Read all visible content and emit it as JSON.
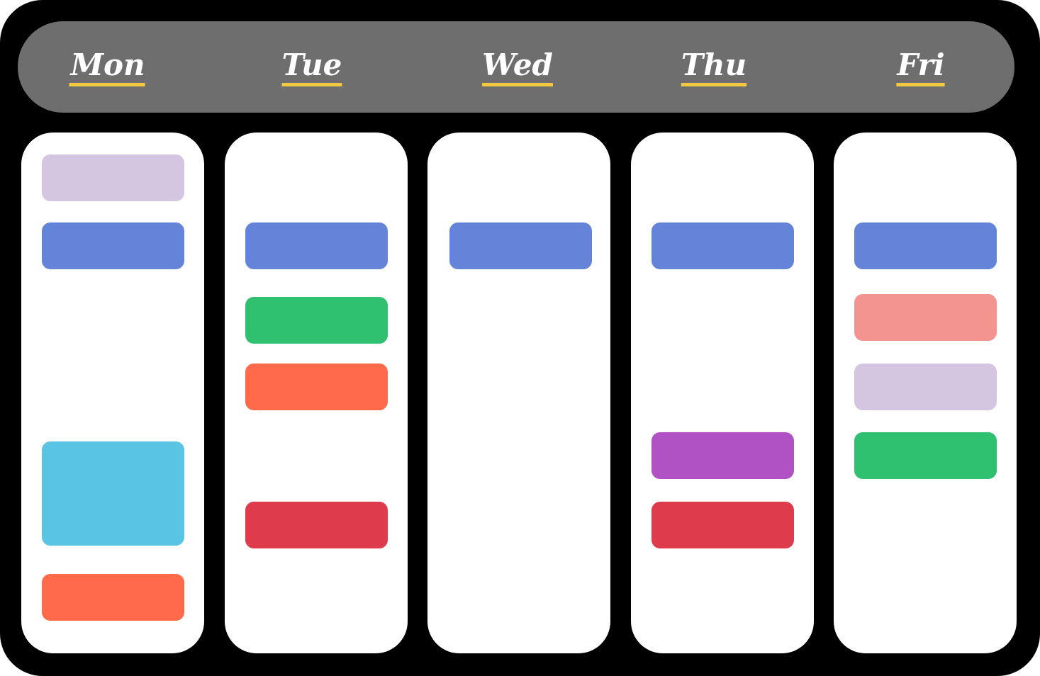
{
  "header": {
    "days": [
      "Mon",
      "Tue",
      "Wed",
      "Thu",
      "Fri"
    ]
  }
}
